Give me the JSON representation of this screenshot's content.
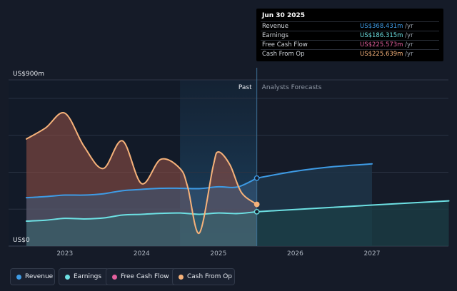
{
  "chart_data": {
    "type": "line",
    "y_unit_label_top": "US$900m",
    "y_unit_label_bottom": "US$0",
    "ylim": [
      0,
      900
    ],
    "xlim": [
      2022.5,
      2028
    ],
    "x_ticks": [
      "2023",
      "2024",
      "2025",
      "2026",
      "2027"
    ],
    "divider_x": 2025.5,
    "past_label": "Past",
    "forecast_label": "Analysts Forecasts",
    "series": [
      {
        "name": "Revenue",
        "color": "#3e9be5",
        "points": [
          [
            2022.5,
            262
          ],
          [
            2022.75,
            268
          ],
          [
            2023,
            276
          ],
          [
            2023.25,
            276
          ],
          [
            2023.5,
            283
          ],
          [
            2023.75,
            300
          ],
          [
            2024,
            307
          ],
          [
            2024.25,
            313
          ],
          [
            2024.5,
            313
          ],
          [
            2024.75,
            311
          ],
          [
            2025,
            321
          ],
          [
            2025.25,
            320
          ],
          [
            2025.5,
            368
          ]
        ],
        "forecast": [
          [
            2025.5,
            368
          ],
          [
            2026,
            405
          ],
          [
            2026.5,
            430
          ],
          [
            2027,
            445
          ]
        ]
      },
      {
        "name": "Earnings",
        "color": "#6de0e3",
        "points": [
          [
            2022.5,
            135
          ],
          [
            2022.75,
            140
          ],
          [
            2023,
            150
          ],
          [
            2023.25,
            147
          ],
          [
            2023.5,
            152
          ],
          [
            2023.75,
            168
          ],
          [
            2024,
            172
          ],
          [
            2024.25,
            177
          ],
          [
            2024.5,
            179
          ],
          [
            2024.75,
            172
          ],
          [
            2025,
            179
          ],
          [
            2025.25,
            176
          ],
          [
            2025.5,
            186
          ]
        ],
        "forecast": [
          [
            2025.5,
            186
          ],
          [
            2026,
            198
          ],
          [
            2026.5,
            210
          ],
          [
            2027,
            222
          ],
          [
            2028,
            245
          ]
        ]
      },
      {
        "name": "Free Cash Flow",
        "color": "#e4609e",
        "points": [
          [
            2025.5,
            226
          ]
        ],
        "forecast": []
      },
      {
        "name": "Cash From Op",
        "color": "#f6b27a",
        "points": [
          [
            2022.5,
            580
          ],
          [
            2022.75,
            640
          ],
          [
            2023,
            720
          ],
          [
            2023.25,
            540
          ],
          [
            2023.5,
            420
          ],
          [
            2023.75,
            570
          ],
          [
            2024,
            338
          ],
          [
            2024.25,
            470
          ],
          [
            2024.5,
            420
          ],
          [
            2024.6,
            320
          ],
          [
            2024.75,
            70
          ],
          [
            2024.93,
            430
          ],
          [
            2025,
            510
          ],
          [
            2025.15,
            440
          ],
          [
            2025.3,
            290
          ],
          [
            2025.5,
            226
          ]
        ],
        "forecast": []
      }
    ]
  },
  "tooltip": {
    "date": "Jun 30 2025",
    "rows": [
      {
        "label": "Revenue",
        "value": "US$368.431m",
        "unit": "/yr",
        "color": "#3e9be5"
      },
      {
        "label": "Earnings",
        "value": "US$186.315m",
        "unit": "/yr",
        "color": "#6de0e3"
      },
      {
        "label": "Free Cash Flow",
        "value": "US$225.573m",
        "unit": "/yr",
        "color": "#e4609e"
      },
      {
        "label": "Cash From Op",
        "value": "US$225.639m",
        "unit": "/yr",
        "color": "#f6b27a"
      }
    ]
  },
  "legend": [
    {
      "label": "Revenue",
      "color": "#3e9be5"
    },
    {
      "label": "Earnings",
      "color": "#6de0e3"
    },
    {
      "label": "Free Cash Flow",
      "color": "#e4609e"
    },
    {
      "label": "Cash From Op",
      "color": "#f6b27a"
    }
  ]
}
